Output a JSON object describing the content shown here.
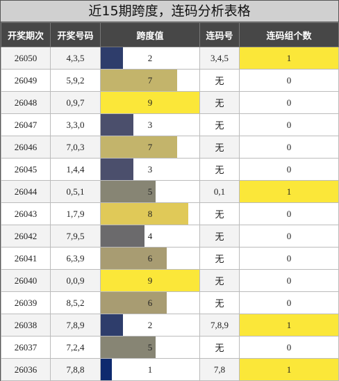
{
  "title": "近15期跨度，连码分析表格",
  "headers": [
    "开奖期次",
    "开奖号码",
    "跨度值",
    "连码号",
    "连码组个数"
  ],
  "rows": [
    {
      "issue": "26050",
      "numbers": "4,3,5",
      "span": 2,
      "span_color": "#2e3d6b",
      "lian": "3,4,5",
      "count": "1",
      "highlight": true
    },
    {
      "issue": "26049",
      "numbers": "5,9,2",
      "span": 7,
      "span_color": "#c3b46b",
      "lian": "无",
      "count": "0",
      "highlight": false
    },
    {
      "issue": "26048",
      "numbers": "0,9,7",
      "span": 9,
      "span_color": "#fbe739",
      "lian": "无",
      "count": "0",
      "highlight": false
    },
    {
      "issue": "26047",
      "numbers": "3,3,0",
      "span": 3,
      "span_color": "#4b4f6c",
      "lian": "无",
      "count": "0",
      "highlight": false
    },
    {
      "issue": "26046",
      "numbers": "7,0,3",
      "span": 7,
      "span_color": "#c3b46b",
      "lian": "无",
      "count": "0",
      "highlight": false
    },
    {
      "issue": "26045",
      "numbers": "1,4,4",
      "span": 3,
      "span_color": "#4b4f6c",
      "lian": "无",
      "count": "0",
      "highlight": false
    },
    {
      "issue": "26044",
      "numbers": "0,5,1",
      "span": 5,
      "span_color": "#878574",
      "lian": "0,1",
      "count": "1",
      "highlight": true
    },
    {
      "issue": "26043",
      "numbers": "1,7,9",
      "span": 8,
      "span_color": "#e0c958",
      "lian": "无",
      "count": "0",
      "highlight": false
    },
    {
      "issue": "26042",
      "numbers": "7,9,5",
      "span": 4,
      "span_color": "#6b6a6c",
      "lian": "无",
      "count": "0",
      "highlight": false
    },
    {
      "issue": "26041",
      "numbers": "6,3,9",
      "span": 6,
      "span_color": "#a89c72",
      "lian": "无",
      "count": "0",
      "highlight": false
    },
    {
      "issue": "26040",
      "numbers": "0,0,9",
      "span": 9,
      "span_color": "#fbe739",
      "lian": "无",
      "count": "0",
      "highlight": false
    },
    {
      "issue": "26039",
      "numbers": "8,5,2",
      "span": 6,
      "span_color": "#a89c72",
      "lian": "无",
      "count": "0",
      "highlight": false
    },
    {
      "issue": "26038",
      "numbers": "7,8,9",
      "span": 2,
      "span_color": "#2e3d6b",
      "lian": "7,8,9",
      "count": "1",
      "highlight": true
    },
    {
      "issue": "26037",
      "numbers": "7,2,4",
      "span": 5,
      "span_color": "#878574",
      "lian": "无",
      "count": "0",
      "highlight": false
    },
    {
      "issue": "26036",
      "numbers": "7,8,8",
      "span": 1,
      "span_color": "#0e2a6e",
      "lian": "7,8",
      "count": "1",
      "highlight": true
    }
  ],
  "span_max": 9
}
